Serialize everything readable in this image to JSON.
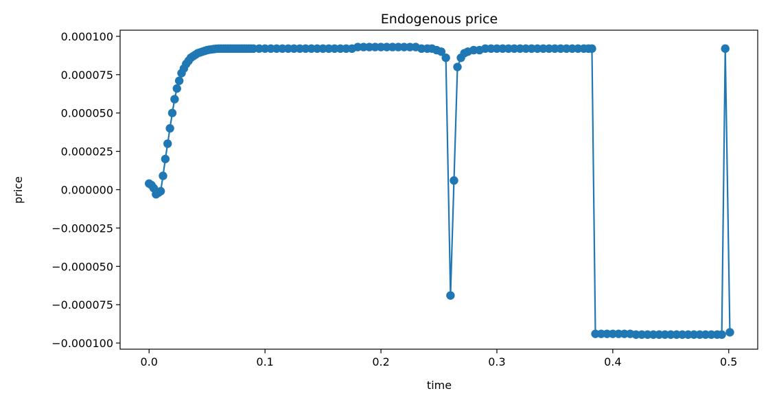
{
  "chart_data": {
    "type": "line",
    "title": "Endogenous price",
    "xlabel": "time",
    "ylabel": "price",
    "xlim": [
      -0.025,
      0.525
    ],
    "ylim": [
      -0.000104,
      0.000104
    ],
    "xticks": [
      0.0,
      0.1,
      0.2,
      0.3,
      0.4,
      0.5
    ],
    "xtick_labels": [
      "0.0",
      "0.1",
      "0.2",
      "0.3",
      "0.4",
      "0.5"
    ],
    "yticks": [
      0.0001,
      7.5e-05,
      5e-05,
      2.5e-05,
      0.0,
      -2.5e-05,
      -5e-05,
      -7.5e-05,
      -0.0001
    ],
    "ytick_labels": [
      "0.000100",
      "0.000075",
      "0.000050",
      "0.000025",
      "0.000000",
      "−0.000025",
      "−0.000050",
      "−0.000075",
      "−0.000100"
    ],
    "grid": false,
    "color": "#1f77b4",
    "marker": "circle",
    "series": [
      {
        "x": [
          0.0,
          0.002,
          0.004,
          0.006,
          0.008,
          0.01,
          0.012,
          0.014,
          0.016,
          0.018,
          0.02,
          0.022,
          0.024,
          0.026,
          0.028,
          0.03,
          0.032,
          0.034,
          0.036,
          0.038,
          0.04,
          0.042,
          0.044,
          0.046,
          0.048,
          0.05,
          0.052,
          0.054,
          0.056,
          0.058,
          0.06,
          0.062,
          0.064,
          0.066,
          0.068,
          0.07,
          0.072,
          0.074,
          0.076,
          0.078,
          0.08,
          0.082,
          0.084,
          0.086,
          0.088,
          0.09,
          0.095,
          0.1,
          0.105,
          0.11,
          0.115,
          0.12,
          0.125,
          0.13,
          0.135,
          0.14,
          0.145,
          0.15,
          0.155,
          0.16,
          0.165,
          0.17,
          0.175,
          0.18,
          0.185,
          0.19,
          0.195,
          0.2,
          0.205,
          0.21,
          0.215,
          0.22,
          0.225,
          0.23,
          0.235,
          0.24,
          0.244,
          0.248,
          0.252,
          0.256,
          0.26,
          0.263,
          0.266,
          0.269,
          0.272,
          0.275,
          0.28,
          0.285,
          0.29,
          0.295,
          0.3,
          0.305,
          0.31,
          0.315,
          0.32,
          0.325,
          0.33,
          0.335,
          0.34,
          0.345,
          0.35,
          0.355,
          0.36,
          0.365,
          0.37,
          0.375,
          0.379,
          0.382,
          0.385,
          0.39,
          0.395,
          0.4,
          0.405,
          0.41,
          0.415,
          0.42,
          0.425,
          0.43,
          0.435,
          0.44,
          0.445,
          0.45,
          0.455,
          0.46,
          0.465,
          0.47,
          0.475,
          0.48,
          0.485,
          0.49,
          0.494,
          0.497,
          0.501
        ],
        "y": [
          4e-06,
          3e-06,
          1e-06,
          -3e-06,
          -2e-06,
          -1e-06,
          9e-06,
          2e-05,
          3e-05,
          4e-05,
          5e-05,
          5.9e-05,
          6.6e-05,
          7.1e-05,
          7.6e-05,
          7.9e-05,
          8.2e-05,
          8.4e-05,
          8.6e-05,
          8.7e-05,
          8.8e-05,
          8.9e-05,
          8.95e-05,
          9e-05,
          9.05e-05,
          9.1e-05,
          9.13e-05,
          9.15e-05,
          9.17e-05,
          9.19e-05,
          9.2e-05,
          9.2e-05,
          9.2e-05,
          9.2e-05,
          9.2e-05,
          9.2e-05,
          9.2e-05,
          9.2e-05,
          9.2e-05,
          9.2e-05,
          9.2e-05,
          9.2e-05,
          9.2e-05,
          9.2e-05,
          9.2e-05,
          9.2e-05,
          9.2e-05,
          9.2e-05,
          9.2e-05,
          9.2e-05,
          9.2e-05,
          9.2e-05,
          9.2e-05,
          9.2e-05,
          9.2e-05,
          9.2e-05,
          9.2e-05,
          9.2e-05,
          9.2e-05,
          9.2e-05,
          9.2e-05,
          9.2e-05,
          9.2e-05,
          9.3e-05,
          9.3e-05,
          9.3e-05,
          9.3e-05,
          9.3e-05,
          9.3e-05,
          9.3e-05,
          9.3e-05,
          9.3e-05,
          9.3e-05,
          9.3e-05,
          9.2e-05,
          9.2e-05,
          9.2e-05,
          9.1e-05,
          9e-05,
          8.6e-05,
          -6.9e-05,
          6e-06,
          8e-05,
          8.6e-05,
          8.9e-05,
          9e-05,
          9.1e-05,
          9.1e-05,
          9.2e-05,
          9.2e-05,
          9.2e-05,
          9.2e-05,
          9.2e-05,
          9.2e-05,
          9.2e-05,
          9.2e-05,
          9.2e-05,
          9.2e-05,
          9.2e-05,
          9.2e-05,
          9.2e-05,
          9.2e-05,
          9.2e-05,
          9.2e-05,
          9.2e-05,
          9.2e-05,
          9.2e-05,
          9.2e-05,
          -9.4e-05,
          -9.4e-05,
          -9.4e-05,
          -9.4e-05,
          -9.4e-05,
          -9.4e-05,
          -9.4e-05,
          -9.45e-05,
          -9.45e-05,
          -9.45e-05,
          -9.45e-05,
          -9.45e-05,
          -9.45e-05,
          -9.45e-05,
          -9.45e-05,
          -9.45e-05,
          -9.45e-05,
          -9.45e-05,
          -9.45e-05,
          -9.45e-05,
          -9.45e-05,
          -9.45e-05,
          -9.45e-05,
          9.2e-05,
          -9.3e-05
        ]
      }
    ]
  }
}
